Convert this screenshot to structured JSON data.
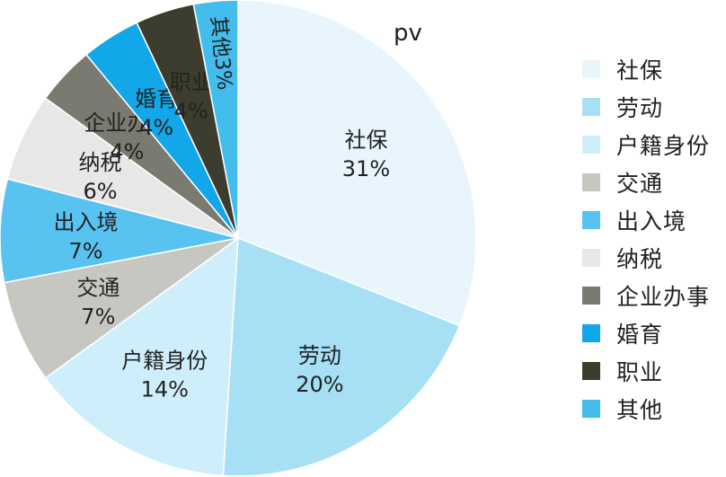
{
  "chart_data": {
    "type": "pie",
    "title": "pv",
    "categories": [
      "社保",
      "劳动",
      "户籍身份",
      "交通",
      "出入境",
      "纳税",
      "企业办事",
      "婚育",
      "职业",
      "其他"
    ],
    "values": [
      31,
      20,
      14,
      7,
      7,
      6,
      4,
      4,
      4,
      3
    ],
    "labels": [
      "社保",
      "劳动",
      "户籍身份",
      "交通",
      "出入境",
      "纳税",
      "企业办事",
      "婚育",
      "职业",
      "其他"
    ],
    "percent_labels": [
      "31%",
      "20%",
      "14%",
      "7%",
      "7%",
      "6%",
      "4%",
      "4%",
      "4%",
      "3%"
    ],
    "colors": [
      "#e8f5fc",
      "#a7dff5",
      "#cfeefb",
      "#c7c7c2",
      "#58c2f1",
      "#e7e7e7",
      "#7a7a70",
      "#12a7e8",
      "#3d3d2f",
      "#42bdec"
    ],
    "legend_position": "right"
  }
}
